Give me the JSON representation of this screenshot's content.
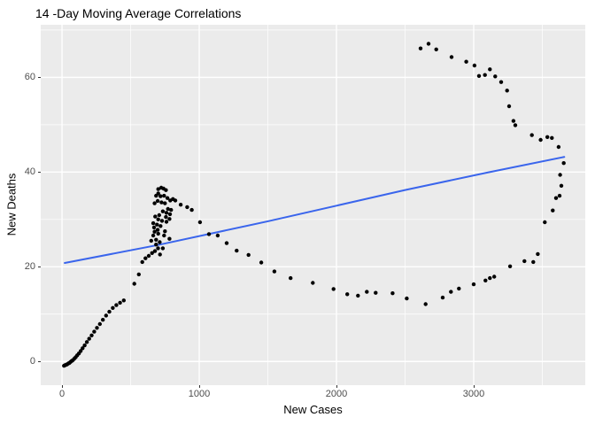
{
  "chart_data": {
    "type": "scatter",
    "title": "14 -Day Moving Average Correlations",
    "xlabel": "New Cases",
    "ylabel": "New Deaths",
    "xlim": [
      -155,
      3813
    ],
    "ylim": [
      -5,
      71.1
    ],
    "x_ticks": [
      0,
      1000,
      2000,
      3000
    ],
    "x_tick_labels": [
      "0",
      "1000",
      "2000",
      "3000"
    ],
    "y_ticks": [
      0,
      20,
      40,
      60
    ],
    "y_tick_labels": [
      "0",
      "20",
      "40",
      "60"
    ],
    "x_minor_ticks": [
      500,
      1500,
      2500,
      3500
    ],
    "y_minor_ticks": [
      10,
      30,
      50,
      70
    ],
    "grid": true,
    "legend": "none",
    "colors": {
      "panel_background": "#EBEBEB",
      "grid_major": "#FFFFFF",
      "grid_minor": "#FFFFFF",
      "point": "#000000",
      "trend_line": "#3A65EC",
      "axis_text": "#4D4D4D",
      "title_text": "#000000"
    },
    "points": [
      [
        15,
        -0.9
      ],
      [
        22,
        -0.8
      ],
      [
        30,
        -0.7
      ],
      [
        38,
        -0.6
      ],
      [
        46,
        -0.4
      ],
      [
        54,
        -0.3
      ],
      [
        62,
        -0.1
      ],
      [
        71,
        0.1
      ],
      [
        80,
        0.3
      ],
      [
        90,
        0.6
      ],
      [
        100,
        0.9
      ],
      [
        111,
        1.3
      ],
      [
        123,
        1.7
      ],
      [
        136,
        2.2
      ],
      [
        150,
        2.8
      ],
      [
        165,
        3.4
      ],
      [
        181,
        4.1
      ],
      [
        198,
        4.8
      ],
      [
        216,
        5.5
      ],
      [
        235,
        6.3
      ],
      [
        255,
        7.1
      ],
      [
        276,
        7.9
      ],
      [
        298,
        8.8
      ],
      [
        321,
        9.7
      ],
      [
        345,
        10.5
      ],
      [
        370,
        11.3
      ],
      [
        396,
        11.9
      ],
      [
        423,
        12.4
      ],
      [
        450,
        12.9
      ],
      [
        527,
        16.4
      ],
      [
        560,
        18.4
      ],
      [
        585,
        21.0
      ],
      [
        608,
        21.8
      ],
      [
        632,
        22.3
      ],
      [
        656,
        22.9
      ],
      [
        677,
        23.3
      ],
      [
        650,
        25.5
      ],
      [
        686,
        24.7
      ],
      [
        700,
        23.9
      ],
      [
        714,
        22.6
      ],
      [
        735,
        23.9
      ],
      [
        712,
        25.2
      ],
      [
        686,
        25.7
      ],
      [
        783,
        25.9
      ],
      [
        701,
        36.4
      ],
      [
        723,
        36.7
      ],
      [
        740,
        36.5
      ],
      [
        757,
        36.2
      ],
      [
        701,
        35.5
      ],
      [
        686,
        35.0
      ],
      [
        718,
        34.9
      ],
      [
        744,
        35.0
      ],
      [
        768,
        34.5
      ],
      [
        789,
        34.0
      ],
      [
        808,
        34.3
      ],
      [
        826,
        34.0
      ],
      [
        697,
        33.9
      ],
      [
        725,
        33.6
      ],
      [
        675,
        33.4
      ],
      [
        750,
        33.4
      ],
      [
        772,
        32.2
      ],
      [
        795,
        32.0
      ],
      [
        735,
        31.7
      ],
      [
        761,
        31.4
      ],
      [
        787,
        31.1
      ],
      [
        708,
        30.9
      ],
      [
        679,
        30.6
      ],
      [
        757,
        30.5
      ],
      [
        783,
        30.1
      ],
      [
        701,
        30.0
      ],
      [
        729,
        29.7
      ],
      [
        761,
        29.5
      ],
      [
        665,
        29.2
      ],
      [
        692,
        28.9
      ],
      [
        718,
        28.6
      ],
      [
        671,
        28.3
      ],
      [
        697,
        27.8
      ],
      [
        675,
        27.4
      ],
      [
        701,
        27.0
      ],
      [
        665,
        26.6
      ],
      [
        750,
        27.5
      ],
      [
        744,
        26.6
      ],
      [
        865,
        33.1
      ],
      [
        912,
        32.6
      ],
      [
        946,
        32.0
      ],
      [
        1006,
        29.4
      ],
      [
        1071,
        26.9
      ],
      [
        1135,
        26.6
      ],
      [
        1200,
        25.0
      ],
      [
        1273,
        23.4
      ],
      [
        1359,
        22.5
      ],
      [
        1452,
        20.9
      ],
      [
        1548,
        19.0
      ],
      [
        1666,
        17.6
      ],
      [
        1828,
        16.6
      ],
      [
        1979,
        15.3
      ],
      [
        2079,
        14.2
      ],
      [
        2157,
        13.9
      ],
      [
        2221,
        14.7
      ],
      [
        2286,
        14.5
      ],
      [
        2409,
        14.4
      ],
      [
        2512,
        13.3
      ],
      [
        2650,
        12.1
      ],
      [
        2774,
        13.5
      ],
      [
        2834,
        14.7
      ],
      [
        2892,
        15.4
      ],
      [
        3000,
        16.3
      ],
      [
        3086,
        17.1
      ],
      [
        3118,
        17.6
      ],
      [
        3150,
        17.9
      ],
      [
        3265,
        20.1
      ],
      [
        3370,
        21.2
      ],
      [
        3434,
        21.0
      ],
      [
        3467,
        22.7
      ],
      [
        3518,
        29.4
      ],
      [
        3576,
        31.9
      ],
      [
        3600,
        34.5
      ],
      [
        3626,
        35.0
      ],
      [
        3639,
        37.1
      ],
      [
        3630,
        39.4
      ],
      [
        3656,
        41.9
      ],
      [
        3619,
        45.3
      ],
      [
        3570,
        47.2
      ],
      [
        3537,
        47.4
      ],
      [
        3488,
        46.8
      ],
      [
        3424,
        47.8
      ],
      [
        3303,
        49.9
      ],
      [
        3290,
        50.8
      ],
      [
        3258,
        53.9
      ],
      [
        3243,
        57.2
      ],
      [
        3200,
        59.0
      ],
      [
        3157,
        60.2
      ],
      [
        3118,
        61.7
      ],
      [
        3082,
        60.5
      ],
      [
        3039,
        60.3
      ],
      [
        3006,
        62.5
      ],
      [
        2946,
        63.3
      ],
      [
        2839,
        64.3
      ],
      [
        2727,
        65.9
      ],
      [
        2671,
        67.1
      ],
      [
        2613,
        66.1
      ]
    ],
    "trend_line_points": [
      [
        20,
        20.8
      ],
      [
        700,
        24.6
      ],
      [
        1500,
        29.6
      ],
      [
        2500,
        36.2
      ],
      [
        3100,
        39.9
      ],
      [
        3660,
        43.2
      ]
    ]
  }
}
